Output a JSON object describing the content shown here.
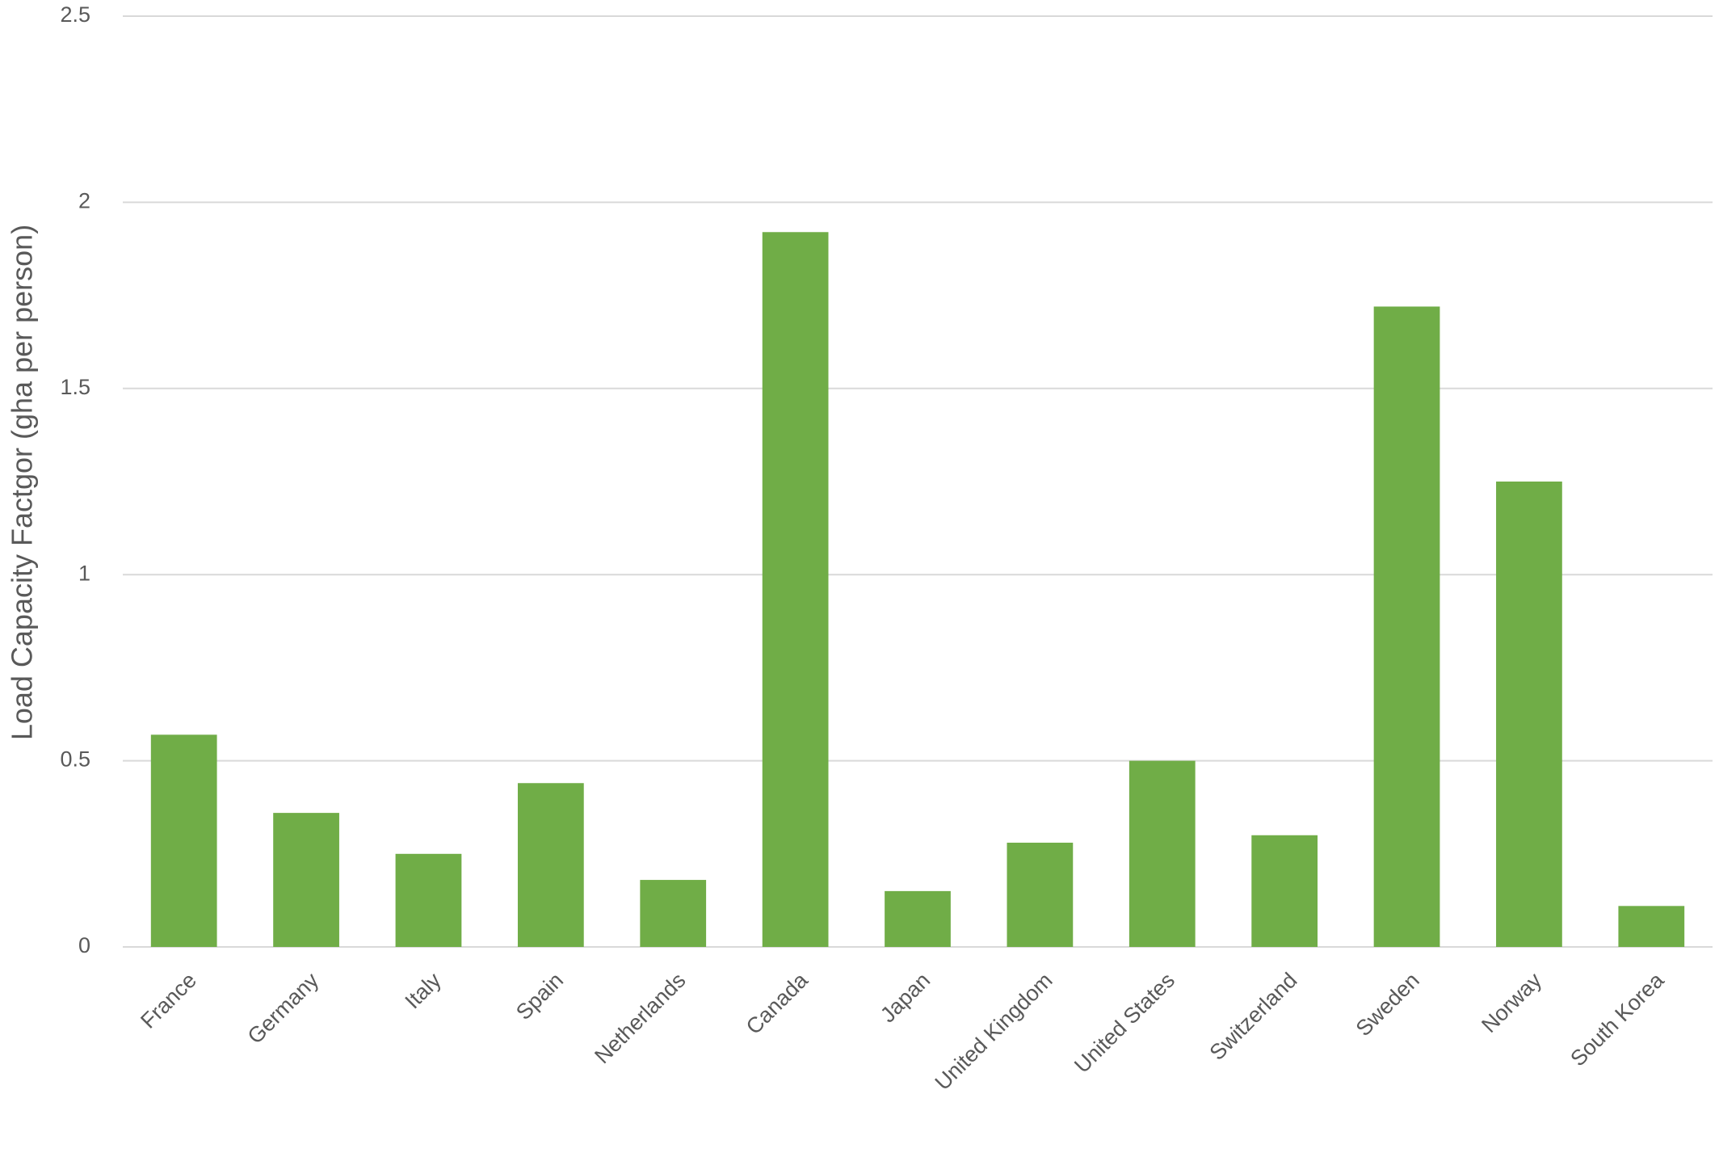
{
  "chart_data": {
    "type": "bar",
    "y_label": "Load Capacity Factgor (gha per person)",
    "categories": [
      "France",
      "Germany",
      "Italy",
      "Spain",
      "Netherlands",
      "Canada",
      "Japan",
      "United Kingdom",
      "United States",
      "Switzerland",
      "Sweden",
      "Norway",
      "South Korea"
    ],
    "values": [
      0.57,
      0.36,
      0.25,
      0.44,
      0.18,
      1.92,
      0.15,
      0.28,
      0.5,
      0.3,
      1.72,
      1.25,
      0.11
    ],
    "color": "#70ad47",
    "ylim": [
      0,
      2.5
    ],
    "yticks": [
      0,
      0.5,
      1,
      1.5,
      2,
      2.5
    ],
    "grid": true
  }
}
